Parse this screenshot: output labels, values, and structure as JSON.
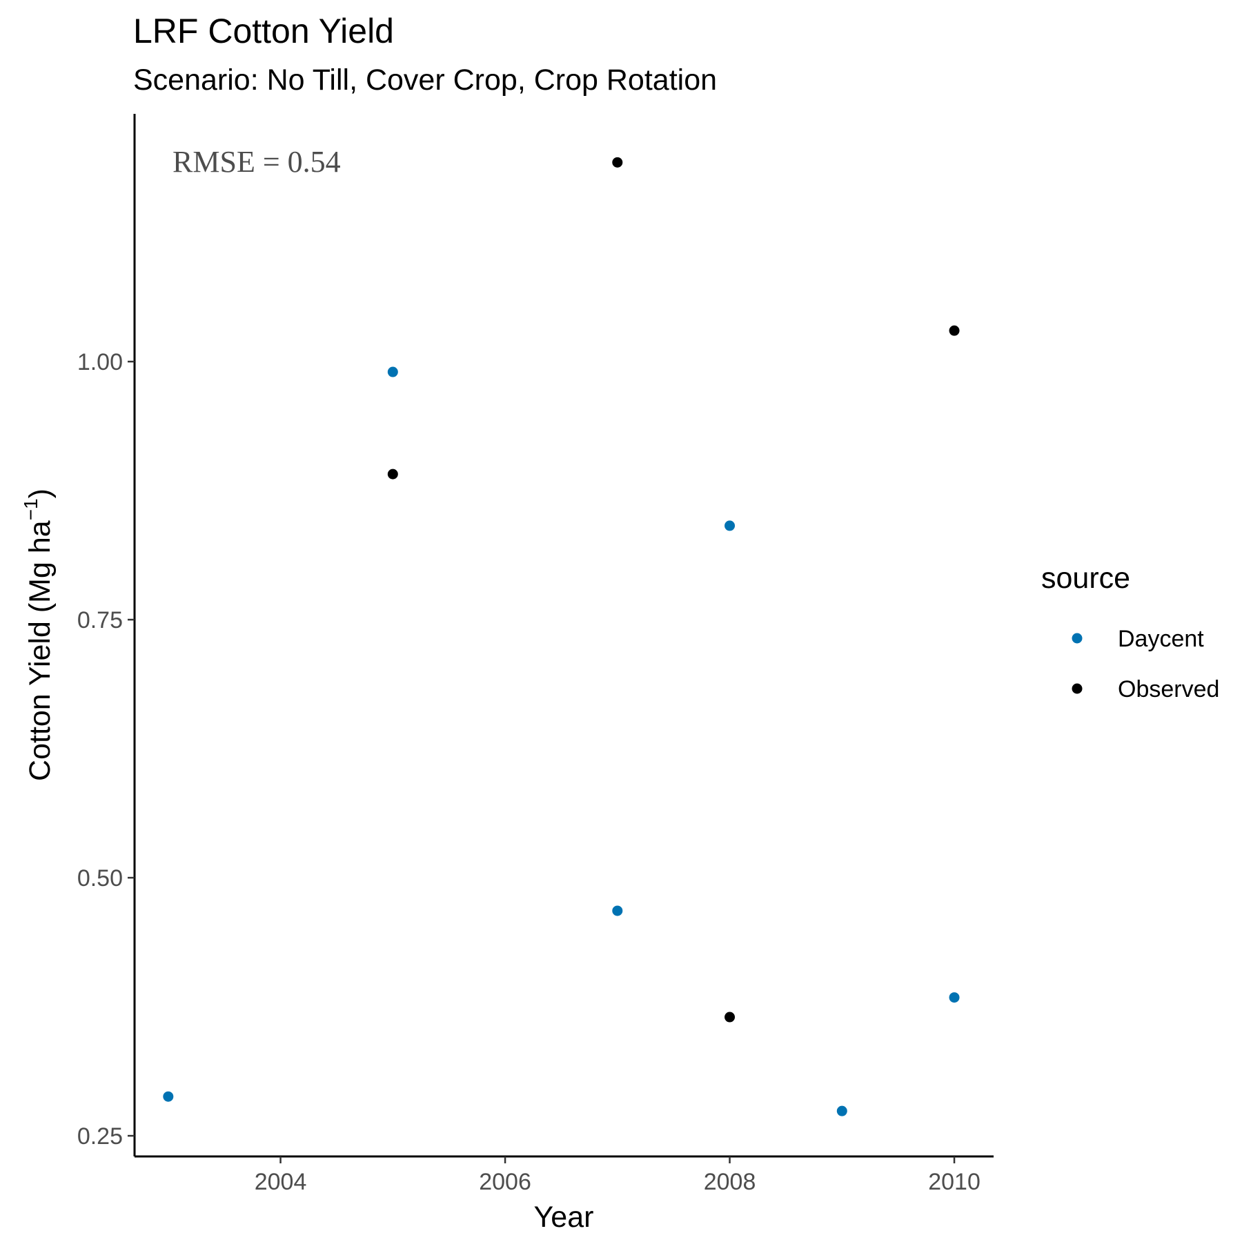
{
  "chart_data": {
    "type": "scatter",
    "title": "LRF Cotton Yield",
    "subtitle": "Scenario: No Till, Cover Crop, Crop Rotation",
    "xlabel": "Year",
    "ylabel_main": "Cotton Yield (Mg ha",
    "ylabel_sup": "−1",
    "ylabel_close": ")",
    "annotation": "RMSE = 0.54",
    "xlim": [
      2002.7,
      2010.35
    ],
    "ylim": [
      0.23,
      1.24
    ],
    "x_ticks": [
      2004,
      2006,
      2008,
      2010
    ],
    "x_tick_labels": [
      "2004",
      "2006",
      "2008",
      "2010"
    ],
    "y_ticks": [
      0.25,
      0.5,
      0.75,
      1.0
    ],
    "y_tick_labels": [
      "0.25",
      "0.50",
      "0.75",
      "1.00"
    ],
    "grid": false,
    "legend": {
      "title": "source",
      "position": "right"
    },
    "series": [
      {
        "name": "Daycent",
        "color": "#0072B2",
        "points": [
          {
            "x": 2003,
            "y": 0.288
          },
          {
            "x": 2005,
            "y": 0.99
          },
          {
            "x": 2007,
            "y": 0.468
          },
          {
            "x": 2008,
            "y": 0.841
          },
          {
            "x": 2009,
            "y": 0.274
          },
          {
            "x": 2010,
            "y": 0.384
          }
        ]
      },
      {
        "name": "Observed",
        "color": "#000000",
        "points": [
          {
            "x": 2005,
            "y": 0.891
          },
          {
            "x": 2007,
            "y": 1.193
          },
          {
            "x": 2008,
            "y": 0.365
          },
          {
            "x": 2010,
            "y": 1.03
          }
        ]
      }
    ]
  }
}
